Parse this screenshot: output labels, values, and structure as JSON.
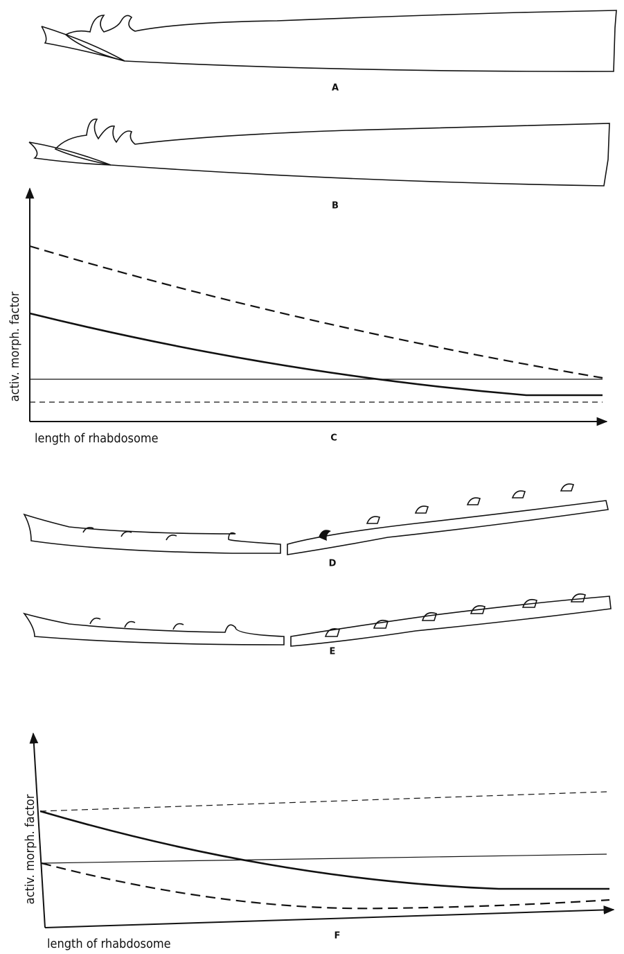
{
  "panels": [
    {
      "label": "A"
    },
    {
      "label": "B"
    },
    {
      "label": "C",
      "y_label": "activ. morph. factor",
      "x_label": "length of rhabdosome"
    },
    {
      "label": "D"
    },
    {
      "label": "E"
    },
    {
      "label": "F",
      "y_label": "activ. morph. factor",
      "x_label": "length of rhabdosome"
    }
  ]
}
